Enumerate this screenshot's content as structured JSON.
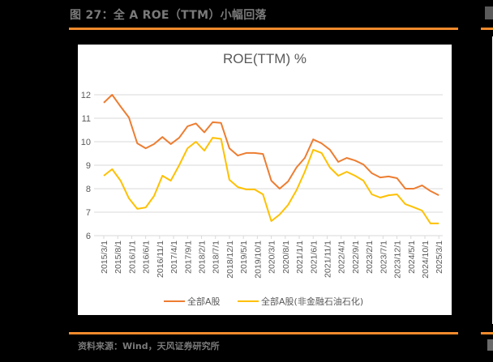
{
  "figure": {
    "title": "图 27：全 A ROE（TTM）小幅回落",
    "source": "资料来源：Wind，天风证券研究所"
  },
  "colors": {
    "accent_line": "#f08a2c",
    "series_all_a": "#ed7d31",
    "series_ex_fin": "#ffc000",
    "grid": "#d9d9d9",
    "axis_text": "#595959"
  },
  "chart_data": {
    "type": "line",
    "title": "ROE(TTM) %",
    "xlabel": "",
    "ylabel": "",
    "ylim": [
      6,
      12
    ],
    "yticks": [
      6,
      7,
      8,
      9,
      10,
      11,
      12
    ],
    "grid": true,
    "legend_position": "bottom",
    "x_tick_labels": [
      "2015/3/1",
      "2015/8/1",
      "2016/1/1",
      "2016/6/1",
      "2016/11/1",
      "2017/4/1",
      "2017/9/1",
      "2018/2/1",
      "2018/7/1",
      "2018/12/1",
      "2019/5/1",
      "2019/10/1",
      "2020/3/1",
      "2020/8/1",
      "2021/1/1",
      "2021/6/1",
      "2021/11/1",
      "2022/4/1",
      "2022/9/1",
      "2023/2/1",
      "2023/7/1",
      "2023/12/1",
      "2024/5/1",
      "2024/10/1",
      "2025/3/1"
    ],
    "x": [
      "2015/3",
      "2015/6",
      "2015/9",
      "2015/12",
      "2016/3",
      "2016/6",
      "2016/9",
      "2016/12",
      "2017/3",
      "2017/6",
      "2017/9",
      "2017/12",
      "2018/3",
      "2018/6",
      "2018/9",
      "2018/12",
      "2019/3",
      "2019/6",
      "2019/9",
      "2019/12",
      "2020/3",
      "2020/6",
      "2020/9",
      "2020/12",
      "2021/3",
      "2021/6",
      "2021/9",
      "2021/12",
      "2022/3",
      "2022/6",
      "2022/9",
      "2022/12",
      "2023/3",
      "2023/6",
      "2023/9",
      "2023/12",
      "2024/3",
      "2024/6",
      "2024/9",
      "2024/12",
      "2025/3"
    ],
    "series": [
      {
        "name": "全部A股",
        "color": "#ed7d31",
        "values": [
          11.66,
          12.0,
          11.5,
          11.03,
          9.93,
          9.72,
          9.9,
          10.2,
          9.9,
          10.17,
          10.66,
          10.78,
          10.4,
          10.83,
          10.8,
          9.72,
          9.41,
          9.52,
          9.52,
          9.48,
          8.34,
          8.0,
          8.31,
          8.9,
          9.31,
          10.1,
          9.93,
          9.66,
          9.14,
          9.31,
          9.2,
          9.03,
          8.66,
          8.48,
          8.52,
          8.45,
          8.0,
          8.0,
          8.14,
          7.9,
          7.72
        ]
      },
      {
        "name": "全部A股(非金融石油石化)",
        "color": "#ffc000",
        "values": [
          8.55,
          8.83,
          8.34,
          7.59,
          7.14,
          7.2,
          7.69,
          8.55,
          8.34,
          9.0,
          9.72,
          10.0,
          9.62,
          10.17,
          10.12,
          8.38,
          8.07,
          7.97,
          7.97,
          7.76,
          6.62,
          6.9,
          7.31,
          7.93,
          8.72,
          9.66,
          9.52,
          8.9,
          8.55,
          8.72,
          8.55,
          8.34,
          7.76,
          7.62,
          7.72,
          7.76,
          7.34,
          7.21,
          7.07,
          6.52,
          6.52
        ]
      }
    ]
  }
}
